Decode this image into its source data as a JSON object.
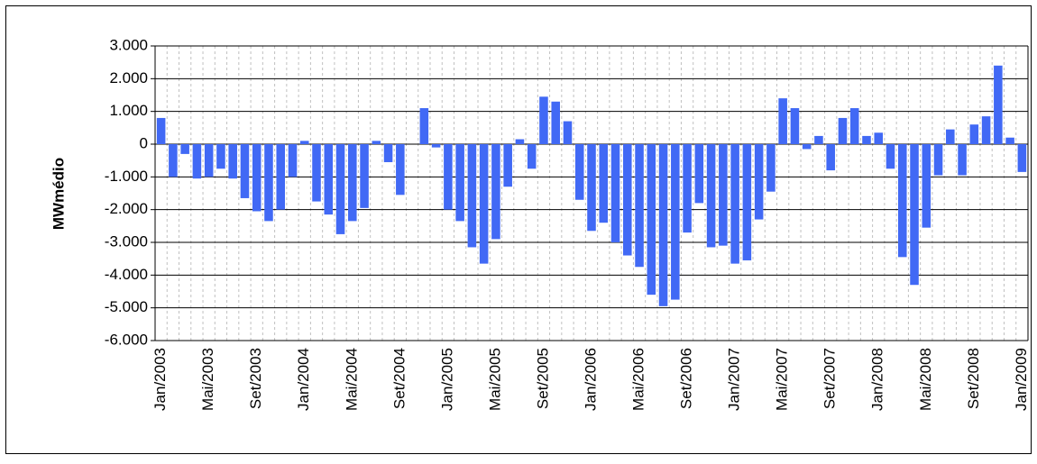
{
  "chart_data": {
    "type": "bar",
    "y_label": "MWmédio",
    "color": "#4169f5",
    "categories": [
      "Jan/2003",
      null,
      null,
      null,
      "Mai/2003",
      null,
      null,
      null,
      "Set/2003",
      null,
      null,
      null,
      "Jan/2004",
      null,
      null,
      null,
      "Mai/2004",
      null,
      null,
      null,
      "Set/2004",
      null,
      null,
      null,
      "Jan/2005",
      null,
      null,
      null,
      "Mai/2005",
      null,
      null,
      null,
      "Set/2005",
      null,
      null,
      null,
      "Jan/2006",
      null,
      null,
      null,
      "Mai/2006",
      null,
      null,
      null,
      "Set/2006",
      null,
      null,
      null,
      "Jan/2007",
      null,
      null,
      null,
      "Mai/2007",
      null,
      null,
      null,
      "Set/2007",
      null,
      null,
      null,
      "Jan/2008",
      null,
      null,
      null,
      "Mai/2008",
      null,
      null,
      null,
      "Set/2008",
      null,
      null,
      null,
      "Jan/2009"
    ],
    "values": [
      800,
      -1000,
      -300,
      -1050,
      -1000,
      -750,
      -1050,
      -1650,
      -2050,
      -2350,
      -2000,
      -1000,
      100,
      -1750,
      -2150,
      -2750,
      -2350,
      -1950,
      100,
      -550,
      -1550,
      0,
      1100,
      -100,
      -2000,
      -2350,
      -3150,
      -3650,
      -2900,
      -1300,
      150,
      -750,
      1450,
      1300,
      700,
      -1700,
      -2650,
      -2400,
      -3000,
      -3400,
      -3750,
      -4600,
      -4950,
      -4750,
      -2700,
      -1800,
      -3150,
      -3100,
      -3650,
      -3550,
      -2300,
      -1450,
      1400,
      1100,
      -150,
      250,
      -800,
      800,
      1100,
      250,
      350,
      -750,
      -3450,
      -4300,
      -2550,
      -950,
      450,
      -950,
      600,
      850,
      2400,
      200,
      -850
    ],
    "ylim": [
      -6000,
      3000
    ],
    "yticks": [
      {
        "value": -6000,
        "label": "-6.000"
      },
      {
        "value": -5000,
        "label": "-5.000"
      },
      {
        "value": -4000,
        "label": "-4.000"
      },
      {
        "value": -3000,
        "label": "-3.000"
      },
      {
        "value": -2000,
        "label": "-2.000"
      },
      {
        "value": -1000,
        "label": "-1.000"
      },
      0,
      {
        "value": 1000,
        "label": "1.000"
      },
      {
        "value": 2000,
        "label": "2.000"
      },
      {
        "value": 3000,
        "label": "3.000"
      }
    ],
    "grid": true
  }
}
